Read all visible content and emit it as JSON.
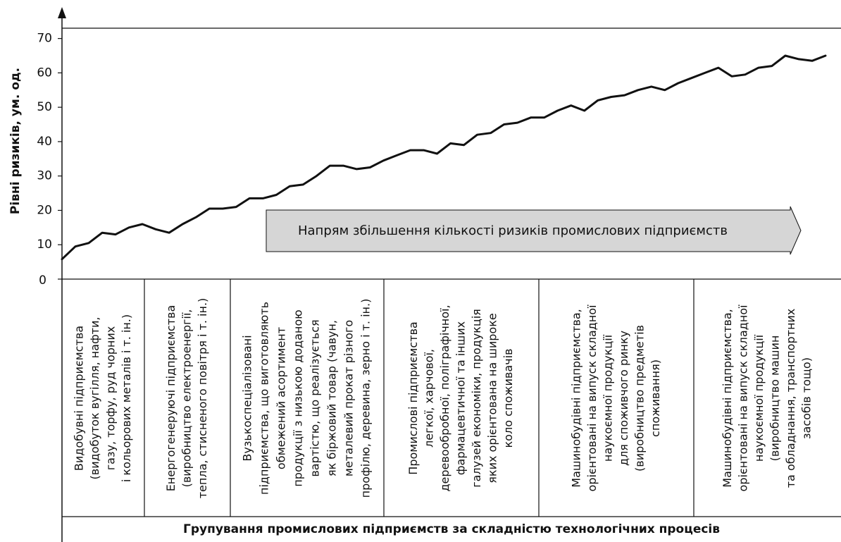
{
  "chart_data": {
    "type": "line",
    "ylabel": "Рівні ризиків, ум. од.",
    "xlabel": "Групування промислових підприємств за складністю технологічних процесів",
    "arrow_label": "Напрям збільшення кількості ризиків промислових підприємств",
    "ylim": [
      0,
      73
    ],
    "yticks": [
      0,
      10,
      20,
      30,
      40,
      50,
      60,
      70
    ],
    "color": "#111111",
    "categories": [
      null,
      null,
      null,
      null,
      null,
      null,
      null,
      null,
      null,
      null,
      null,
      null,
      null,
      null,
      null,
      null,
      null,
      null,
      null,
      null,
      null,
      null,
      null,
      null,
      null,
      null,
      null,
      null,
      null,
      null,
      null,
      null,
      null,
      null,
      null,
      null,
      null,
      null,
      null,
      null,
      null,
      null,
      null,
      null,
      null,
      null,
      null,
      null,
      null,
      null,
      null,
      null,
      null,
      null,
      null,
      null,
      null,
      null
    ],
    "values": [
      5.8,
      9.5,
      10.5,
      13.5,
      13,
      15,
      16,
      14.5,
      13.5,
      16,
      18,
      20.5,
      20.5,
      21,
      23.5,
      23.5,
      24.5,
      27,
      27.5,
      30,
      33,
      33,
      32,
      32.5,
      34.5,
      36,
      37.5,
      37.5,
      36.5,
      39.5,
      39,
      42,
      42.5,
      45,
      45.5,
      47,
      47,
      49,
      50.5,
      49,
      52,
      53,
      53.5,
      55,
      56,
      55,
      57,
      58.5,
      60,
      61.5,
      59,
      59.5,
      61.5,
      62,
      65,
      64,
      63.5,
      65
    ],
    "x_groups": [
      [
        "Видобувні підприємства",
        "(видобуток вугілля, нафти,",
        "газу, торфу, руд чорних",
        "і кольорових металів і т. ін.)"
      ],
      [
        "Енергогенеруючі підприємства",
        "(виробництво електроенергії,",
        "тепла, стисненого повітря і т. ін.)"
      ],
      [
        "Вузькоспеціалізовані",
        "підприємства, що виготовляють",
        "обмежений асортимент",
        "продукції з низькою доданою",
        "вартістю, що реалізується",
        "як біржовий товар (чавун,",
        "металевий прокат різного",
        "профілю, деревина, зерно і т. ін.)"
      ],
      [
        "Промислові підприємства",
        "легкої, харчової,",
        "деревообробної, поліграфічної,",
        "фармацевтичної та інших",
        "галузей економіки, продукція",
        "яких орієнтована на широке",
        "коло споживачів"
      ],
      [
        "Машинобудівні підприємства,",
        "орієнтовані на випуск складної",
        "наукоємної продукції",
        "для споживчого ринку",
        "(виробництво предметів",
        "споживання)"
      ],
      [
        "Машинобудівні підприємства,",
        "орієнтовані на випуск складної",
        "наукоємної продукції",
        "(виробництво машин",
        "та обладнання, транспортних",
        "засобів тощо)"
      ]
    ]
  }
}
